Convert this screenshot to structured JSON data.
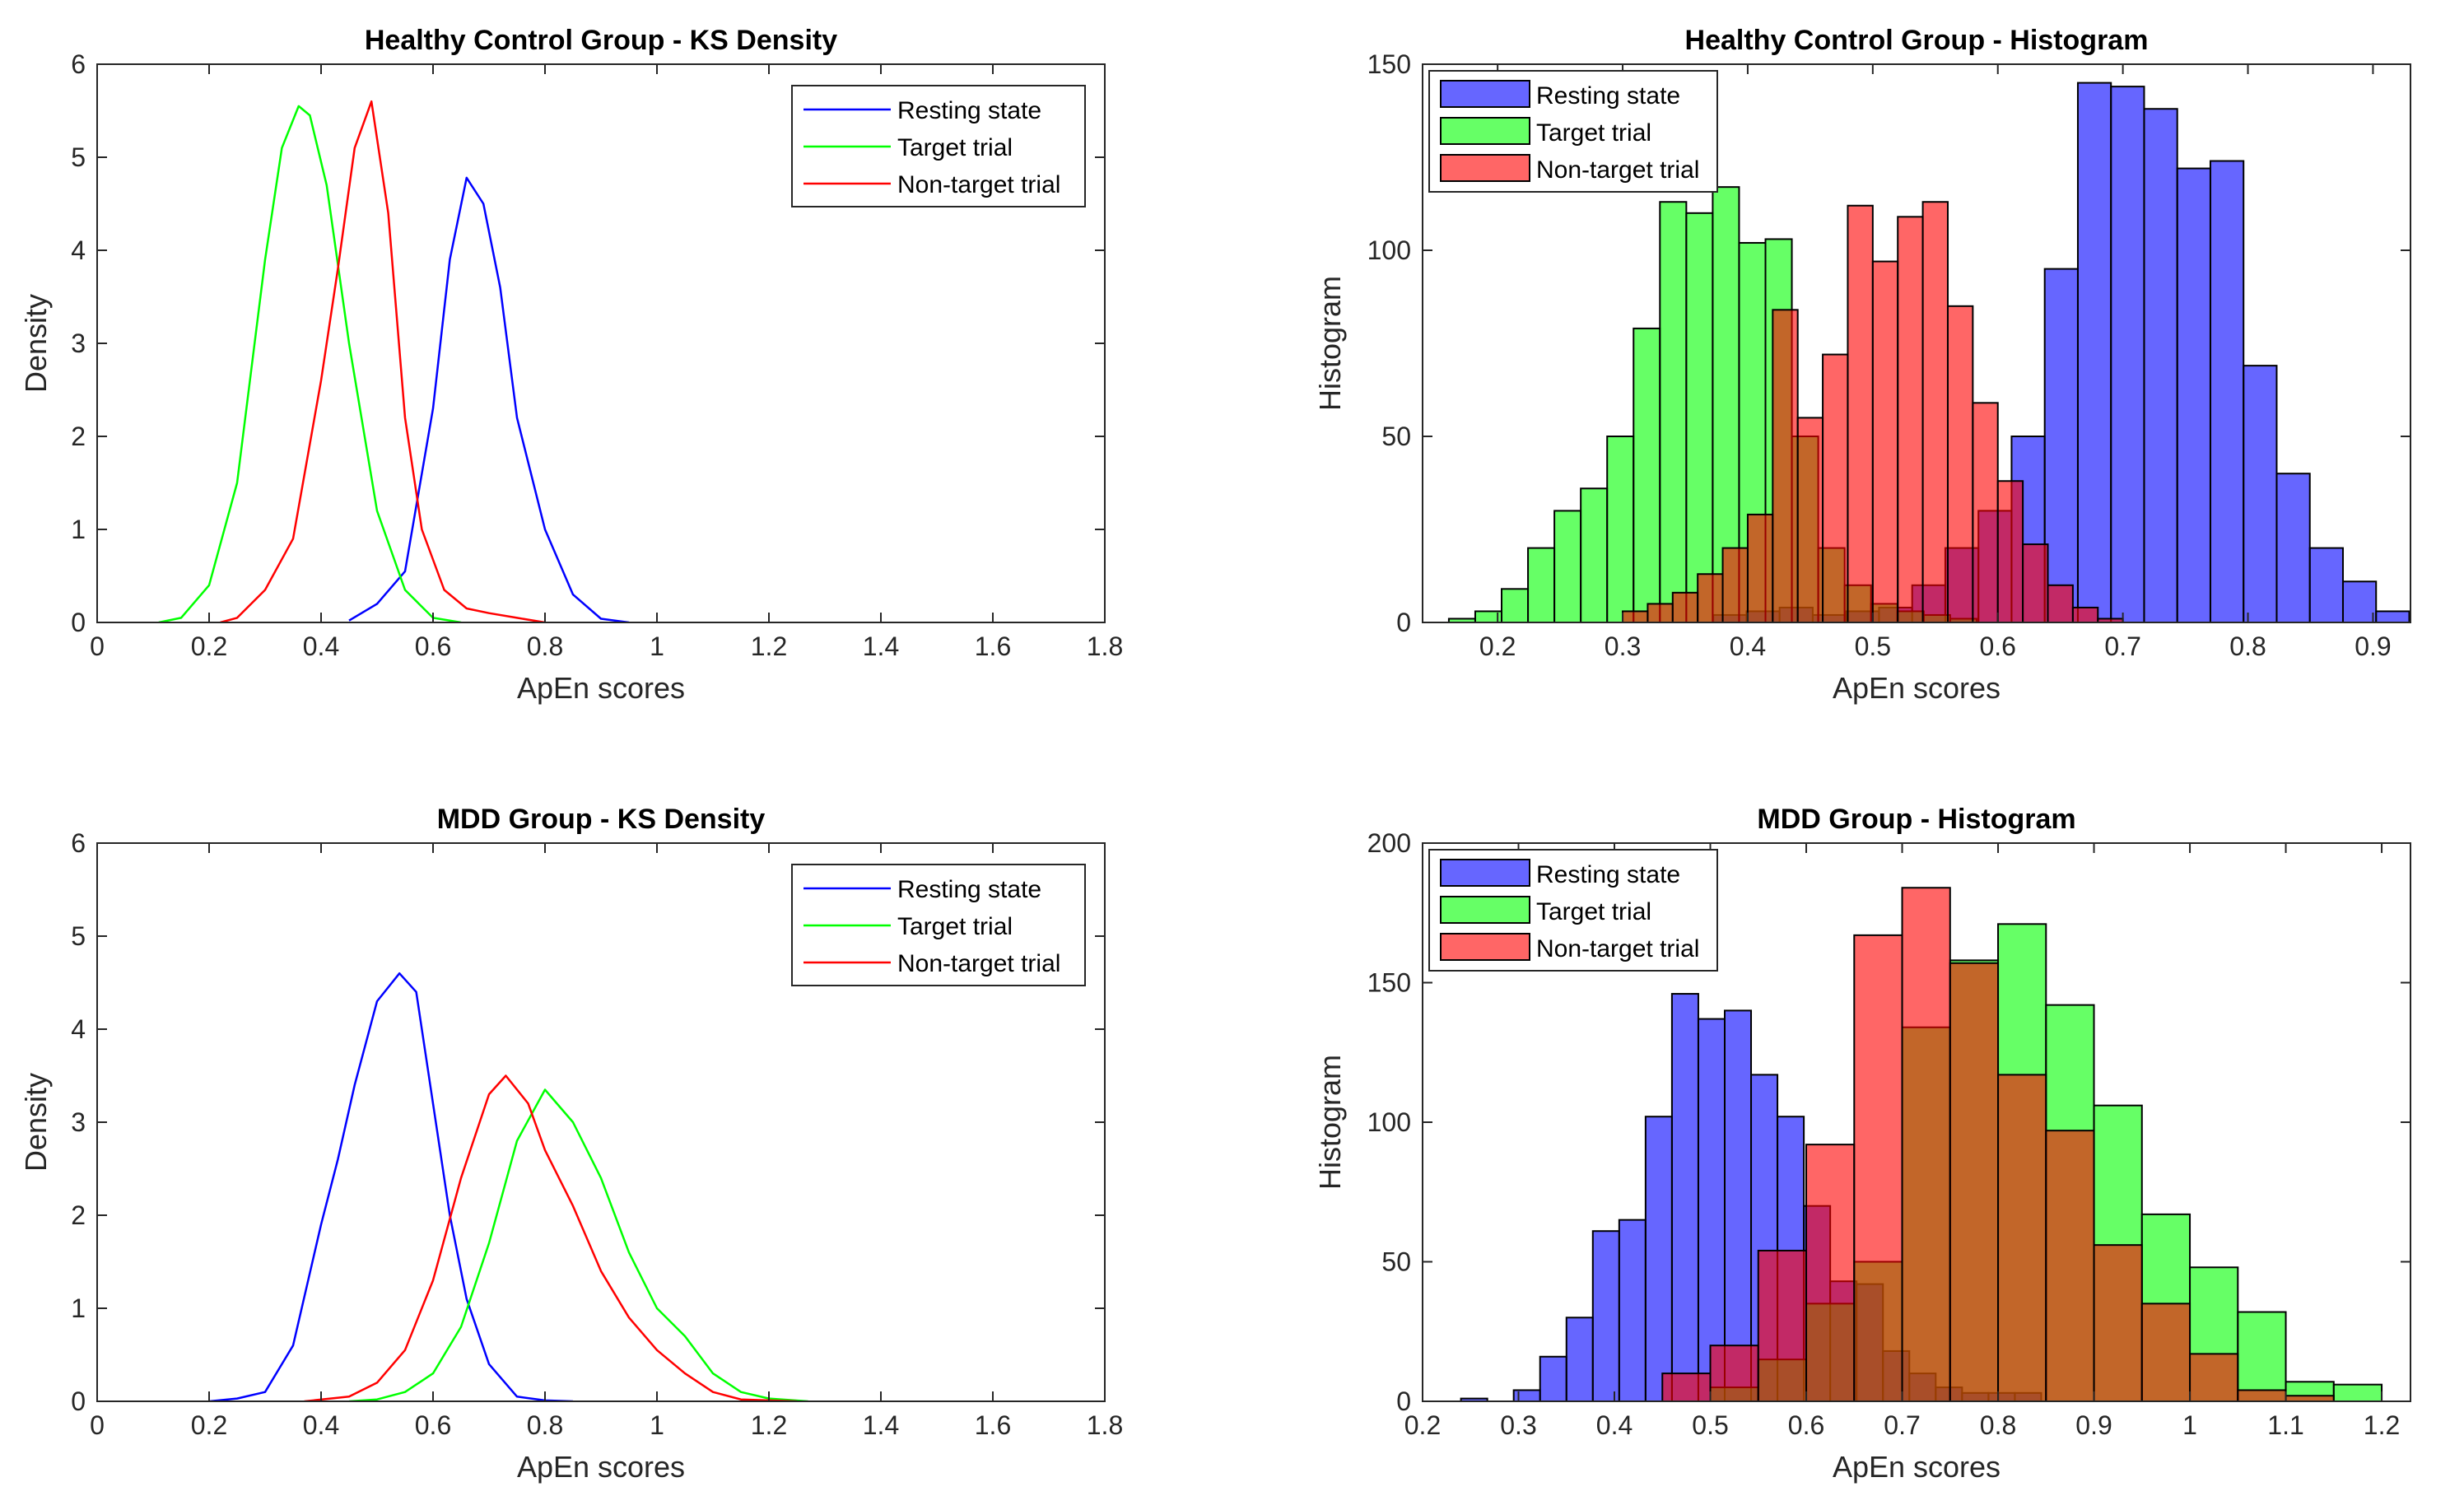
{
  "chart_data": [
    {
      "type": "line",
      "title": "Healthy Control Group - KS Density",
      "xlabel": "ApEn scores",
      "ylabel": "Density",
      "xlim": [
        0,
        1.8
      ],
      "ylim": [
        0,
        6
      ],
      "xticks": [
        0,
        0.2,
        0.4,
        0.6,
        0.8,
        1,
        1.2,
        1.4,
        1.6,
        1.8
      ],
      "xtick_labels": [
        "0",
        "0.2",
        "0.4",
        "0.6",
        "0.8",
        "1",
        "1.2",
        "1.4",
        "1.6",
        "1.8"
      ],
      "yticks": [
        0,
        1,
        2,
        3,
        4,
        5,
        6
      ],
      "ytick_labels": [
        "0",
        "1",
        "2",
        "3",
        "4",
        "5",
        "6"
      ],
      "legend_position": "top-right",
      "series": [
        {
          "name": "Resting state",
          "color": "#0000ff",
          "x": [
            0.45,
            0.5,
            0.55,
            0.6,
            0.63,
            0.66,
            0.69,
            0.72,
            0.75,
            0.8,
            0.85,
            0.9,
            0.95
          ],
          "y": [
            0.02,
            0.2,
            0.55,
            2.3,
            3.9,
            4.78,
            4.5,
            3.6,
            2.2,
            1.0,
            0.3,
            0.04,
            0.0
          ]
        },
        {
          "name": "Target trial",
          "color": "#00ff00",
          "x": [
            0.11,
            0.15,
            0.2,
            0.25,
            0.3,
            0.33,
            0.36,
            0.38,
            0.41,
            0.45,
            0.5,
            0.55,
            0.6,
            0.65
          ],
          "y": [
            0.0,
            0.05,
            0.4,
            1.5,
            3.9,
            5.1,
            5.55,
            5.45,
            4.7,
            3.0,
            1.2,
            0.35,
            0.05,
            0.0
          ]
        },
        {
          "name": "Non-target trial",
          "color": "#ff0000",
          "x": [
            0.22,
            0.25,
            0.3,
            0.35,
            0.4,
            0.43,
            0.46,
            0.49,
            0.52,
            0.55,
            0.58,
            0.62,
            0.66,
            0.7,
            0.75,
            0.8
          ],
          "y": [
            0.0,
            0.05,
            0.35,
            0.9,
            2.6,
            3.8,
            5.1,
            5.6,
            4.4,
            2.2,
            1.0,
            0.35,
            0.15,
            0.1,
            0.05,
            0.0
          ]
        }
      ]
    },
    {
      "type": "bar",
      "title": "Healthy Control Group - Histogram",
      "xlabel": "ApEn scores",
      "ylabel": "Histogram",
      "xlim": [
        0.14,
        0.93
      ],
      "ylim": [
        0,
        150
      ],
      "xticks": [
        0.2,
        0.3,
        0.4,
        0.5,
        0.6,
        0.7,
        0.8,
        0.9
      ],
      "xtick_labels": [
        "0.2",
        "0.3",
        "0.4",
        "0.5",
        "0.6",
        "0.7",
        "0.8",
        "0.9"
      ],
      "yticks": [
        0,
        50,
        100,
        150
      ],
      "ytick_labels": [
        "0",
        "50",
        "100",
        "150"
      ],
      "legend_position": "top-left",
      "series": [
        {
          "name": "Resting state",
          "color": "#0000ff",
          "edges_start": 0.3725,
          "bin_width": 0.0265,
          "values": [
            2,
            3,
            4,
            2,
            3,
            4,
            10,
            20,
            30,
            50,
            95,
            145,
            144,
            138,
            122,
            124,
            69,
            40,
            20,
            11,
            3
          ]
        },
        {
          "name": "Target trial",
          "color": "#00ff00",
          "edges_start": 0.161,
          "bin_width": 0.0211,
          "values": [
            1,
            3,
            9,
            20,
            30,
            36,
            50,
            79,
            113,
            110,
            117,
            102,
            103,
            50,
            20,
            10,
            5,
            3,
            2,
            1,
            0,
            0,
            0,
            0
          ]
        },
        {
          "name": "Non-target trial",
          "color": "#ff0000",
          "edges_start": 0.3,
          "bin_width": 0.02,
          "values": [
            3,
            5,
            8,
            13,
            20,
            29,
            84,
            55,
            72,
            112,
            97,
            109,
            113,
            85,
            59,
            38,
            21,
            10,
            4,
            1
          ]
        }
      ]
    },
    {
      "type": "line",
      "title": "MDD Group - KS Density",
      "xlabel": "ApEn scores",
      "ylabel": "Density",
      "xlim": [
        0,
        1.8
      ],
      "ylim": [
        0,
        6
      ],
      "xticks": [
        0,
        0.2,
        0.4,
        0.6,
        0.8,
        1,
        1.2,
        1.4,
        1.6,
        1.8
      ],
      "xtick_labels": [
        "0",
        "0.2",
        "0.4",
        "0.6",
        "0.8",
        "1",
        "1.2",
        "1.4",
        "1.6",
        "1.8"
      ],
      "yticks": [
        0,
        1,
        2,
        3,
        4,
        5,
        6
      ],
      "ytick_labels": [
        "0",
        "1",
        "2",
        "3",
        "4",
        "5",
        "6"
      ],
      "legend_position": "top-right",
      "series": [
        {
          "name": "Resting state",
          "color": "#0000ff",
          "x": [
            0.2,
            0.25,
            0.3,
            0.35,
            0.4,
            0.43,
            0.46,
            0.5,
            0.54,
            0.57,
            0.6,
            0.63,
            0.66,
            0.7,
            0.75,
            0.8,
            0.85
          ],
          "y": [
            0.0,
            0.03,
            0.1,
            0.6,
            1.9,
            2.6,
            3.4,
            4.3,
            4.6,
            4.4,
            3.2,
            2.0,
            1.1,
            0.4,
            0.05,
            0.01,
            0.0
          ]
        },
        {
          "name": "Target trial",
          "color": "#00ff00",
          "x": [
            0.45,
            0.5,
            0.55,
            0.6,
            0.65,
            0.7,
            0.75,
            0.8,
            0.85,
            0.9,
            0.95,
            1.0,
            1.05,
            1.1,
            1.15,
            1.2,
            1.27
          ],
          "y": [
            0.0,
            0.02,
            0.1,
            0.3,
            0.8,
            1.7,
            2.8,
            3.35,
            3.0,
            2.4,
            1.6,
            1.0,
            0.7,
            0.3,
            0.1,
            0.03,
            0.0
          ]
        },
        {
          "name": "Non-target trial",
          "color": "#ff0000",
          "x": [
            0.37,
            0.45,
            0.5,
            0.55,
            0.6,
            0.65,
            0.7,
            0.73,
            0.77,
            0.8,
            0.85,
            0.9,
            0.95,
            1.0,
            1.05,
            1.1,
            1.15,
            1.25
          ],
          "y": [
            0.0,
            0.05,
            0.2,
            0.55,
            1.3,
            2.4,
            3.3,
            3.5,
            3.2,
            2.7,
            2.1,
            1.4,
            0.9,
            0.55,
            0.3,
            0.1,
            0.02,
            0.0
          ]
        }
      ]
    },
    {
      "type": "bar",
      "title": "MDD Group - Histogram",
      "xlabel": "ApEn scores",
      "ylabel": "Histogram",
      "xlim": [
        0.2,
        1.23
      ],
      "ylim": [
        0,
        200
      ],
      "xticks": [
        0.2,
        0.3,
        0.4,
        0.5,
        0.6,
        0.7,
        0.8,
        0.9,
        1,
        1.1,
        1.2
      ],
      "xtick_labels": [
        "0.2",
        "0.3",
        "0.4",
        "0.5",
        "0.6",
        "0.7",
        "0.8",
        "0.9",
        "1",
        "1.1",
        "1.2"
      ],
      "yticks": [
        0,
        50,
        100,
        150,
        200
      ],
      "ytick_labels": [
        "0",
        "50",
        "100",
        "150",
        "200"
      ],
      "legend_position": "top-left",
      "series": [
        {
          "name": "Resting state",
          "color": "#0000ff",
          "edges_start": 0.24,
          "bin_width": 0.0275,
          "values": [
            1,
            0,
            4,
            16,
            30,
            61,
            65,
            102,
            146,
            137,
            140,
            117,
            102,
            70,
            43,
            42,
            18,
            10,
            5,
            3,
            3,
            3
          ]
        },
        {
          "name": "Target trial",
          "color": "#00ff00",
          "edges_start": 0.45,
          "bin_width": 0.05,
          "values": [
            0,
            5,
            15,
            35,
            50,
            134,
            158,
            171,
            142,
            106,
            67,
            48,
            32,
            7,
            6
          ]
        },
        {
          "name": "Non-target trial",
          "color": "#ff0000",
          "edges_start": 0.45,
          "bin_width": 0.05,
          "values": [
            10,
            20,
            54,
            92,
            167,
            184,
            157,
            117,
            97,
            56,
            35,
            17,
            4,
            2,
            0
          ]
        }
      ]
    }
  ]
}
